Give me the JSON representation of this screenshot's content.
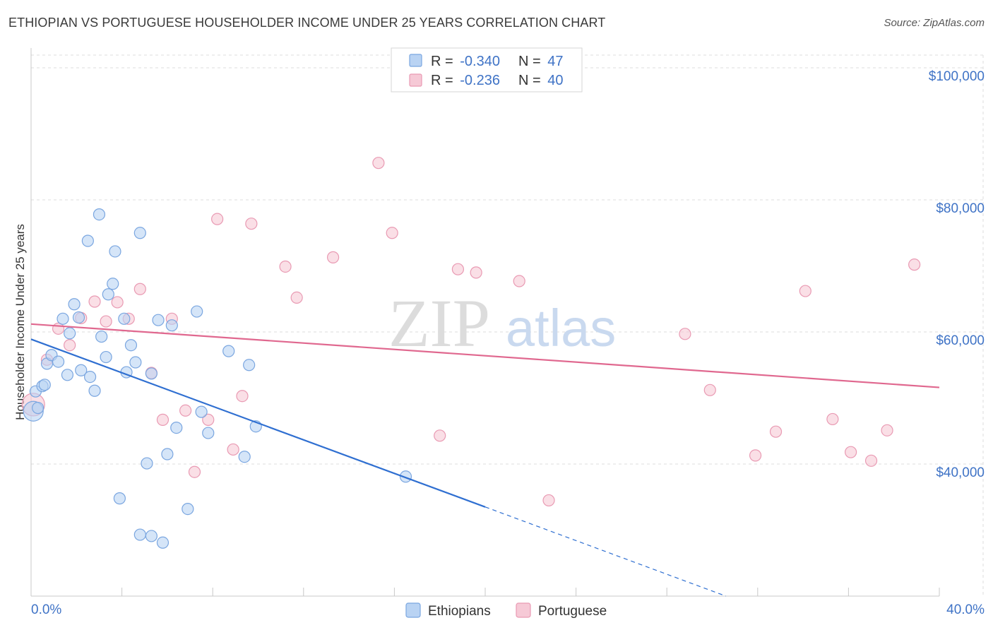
{
  "header": {
    "title": "ETHIOPIAN VS PORTUGUESE HOUSEHOLDER INCOME UNDER 25 YEARS CORRELATION CHART",
    "source": "Source: ZipAtlas.com"
  },
  "watermark": {
    "zip": "ZIP",
    "atlas": "atlas"
  },
  "legend": {
    "rows": [
      {
        "r_label": "R = ",
        "r_value": "-0.340",
        "n_label": "N = ",
        "n_value": "47"
      },
      {
        "r_label": "R = ",
        "r_value": "-0.236",
        "n_label": "N = ",
        "n_value": "40"
      }
    ]
  },
  "bottom_legend": {
    "items": [
      "Ethiopians",
      "Portuguese"
    ]
  },
  "colors": {
    "blue_fill": "#b9d3f3",
    "blue_stroke": "#7aa6e0",
    "blue_line": "#2f6fd1",
    "pink_fill": "#f6c9d6",
    "pink_stroke": "#e99ab3",
    "pink_line": "#e0688f",
    "tick_text": "#3f73c6",
    "grid": "#dddddd"
  },
  "chart_data": {
    "type": "scatter",
    "title": "ETHIOPIAN VS PORTUGUESE HOUSEHOLDER INCOME UNDER 25 YEARS CORRELATION CHART",
    "xlabel": "",
    "ylabel": "Householder Income Under 25 years",
    "xlim": [
      0,
      40
    ],
    "ylim": [
      20000,
      103000
    ],
    "x_tick_labels": [
      "0.0%",
      "40.0%"
    ],
    "y_ticks": [
      40000,
      60000,
      80000,
      100000
    ],
    "y_tick_labels": [
      "$40,000",
      "$60,000",
      "$80,000",
      "$100,000"
    ],
    "grid": true,
    "legend_position": "top-center",
    "series": [
      {
        "name": "Ethiopians",
        "color": "#b9d3f3",
        "r": -0.34,
        "n": 47,
        "trend": {
          "x0": 0,
          "y0": 58900,
          "x1": 20,
          "y1": 33500,
          "dashed_to_x": 30.6,
          "dashed_to_y": 20000
        },
        "points": [
          [
            0.1,
            48000,
            14
          ],
          [
            0.2,
            51000,
            8
          ],
          [
            0.5,
            51800,
            8
          ],
          [
            0.7,
            55200,
            8
          ],
          [
            0.6,
            52000,
            8
          ],
          [
            0.9,
            56500,
            8
          ],
          [
            1.2,
            55500,
            8
          ],
          [
            1.4,
            62000,
            8
          ],
          [
            1.6,
            53500,
            8
          ],
          [
            1.7,
            59800,
            8
          ],
          [
            1.9,
            64200,
            8
          ],
          [
            2.1,
            62200,
            8
          ],
          [
            2.2,
            54200,
            8
          ],
          [
            2.5,
            73800,
            8
          ],
          [
            2.6,
            53200,
            8
          ],
          [
            2.8,
            51100,
            8
          ],
          [
            3.0,
            77800,
            8
          ],
          [
            3.1,
            59300,
            8
          ],
          [
            3.3,
            56200,
            8
          ],
          [
            3.4,
            65700,
            8
          ],
          [
            3.6,
            67300,
            8
          ],
          [
            3.7,
            72200,
            8
          ],
          [
            3.9,
            34800,
            8
          ],
          [
            4.1,
            62000,
            8
          ],
          [
            4.2,
            53900,
            8
          ],
          [
            4.4,
            58000,
            8
          ],
          [
            4.6,
            55400,
            8
          ],
          [
            4.8,
            75000,
            8
          ],
          [
            4.8,
            29300,
            8
          ],
          [
            5.1,
            40100,
            8
          ],
          [
            5.3,
            29100,
            8
          ],
          [
            5.3,
            53700,
            8
          ],
          [
            5.6,
            61800,
            8
          ],
          [
            5.8,
            28100,
            8
          ],
          [
            6.0,
            41500,
            8
          ],
          [
            6.2,
            61000,
            8
          ],
          [
            6.4,
            45500,
            8
          ],
          [
            6.9,
            33200,
            8
          ],
          [
            7.3,
            63100,
            8
          ],
          [
            7.5,
            47900,
            8
          ],
          [
            7.8,
            44700,
            8
          ],
          [
            8.7,
            57100,
            8
          ],
          [
            9.4,
            41100,
            8
          ],
          [
            9.6,
            55000,
            8
          ],
          [
            9.9,
            45700,
            8
          ],
          [
            16.5,
            38100,
            8
          ],
          [
            0.3,
            48500,
            8
          ]
        ]
      },
      {
        "name": "Portuguese",
        "color": "#f6c9d6",
        "r": -0.236,
        "n": 40,
        "trend": {
          "x0": 0,
          "y0": 61200,
          "x1": 40,
          "y1": 51600
        },
        "points": [
          [
            0.1,
            49000,
            16
          ],
          [
            0.7,
            55800,
            8
          ],
          [
            1.2,
            60500,
            8
          ],
          [
            1.7,
            58000,
            8
          ],
          [
            2.2,
            62100,
            8
          ],
          [
            2.8,
            64600,
            8
          ],
          [
            3.3,
            61600,
            8
          ],
          [
            3.8,
            64500,
            8
          ],
          [
            4.3,
            62000,
            8
          ],
          [
            4.8,
            66500,
            8
          ],
          [
            5.3,
            53800,
            8
          ],
          [
            5.8,
            46700,
            8
          ],
          [
            6.2,
            62000,
            8
          ],
          [
            6.8,
            48100,
            8
          ],
          [
            7.2,
            38800,
            8
          ],
          [
            7.8,
            46700,
            8
          ],
          [
            8.2,
            77100,
            8
          ],
          [
            8.9,
            42200,
            8
          ],
          [
            9.3,
            50300,
            8
          ],
          [
            9.7,
            76400,
            8
          ],
          [
            11.2,
            69900,
            8
          ],
          [
            11.7,
            65200,
            8
          ],
          [
            13.3,
            71300,
            8
          ],
          [
            15.3,
            85600,
            8
          ],
          [
            15.9,
            75000,
            8
          ],
          [
            18.0,
            44300,
            8
          ],
          [
            18.8,
            69500,
            8
          ],
          [
            19.6,
            69000,
            8
          ],
          [
            21.5,
            67700,
            8
          ],
          [
            22.8,
            34500,
            8
          ],
          [
            28.8,
            59700,
            8
          ],
          [
            29.9,
            51200,
            8
          ],
          [
            31.9,
            41300,
            8
          ],
          [
            32.8,
            44900,
            8
          ],
          [
            34.1,
            66200,
            8
          ],
          [
            35.3,
            46800,
            8
          ],
          [
            36.1,
            41800,
            8
          ],
          [
            37.0,
            40500,
            8
          ],
          [
            37.7,
            45100,
            8
          ],
          [
            38.9,
            70200,
            8
          ]
        ]
      }
    ]
  }
}
